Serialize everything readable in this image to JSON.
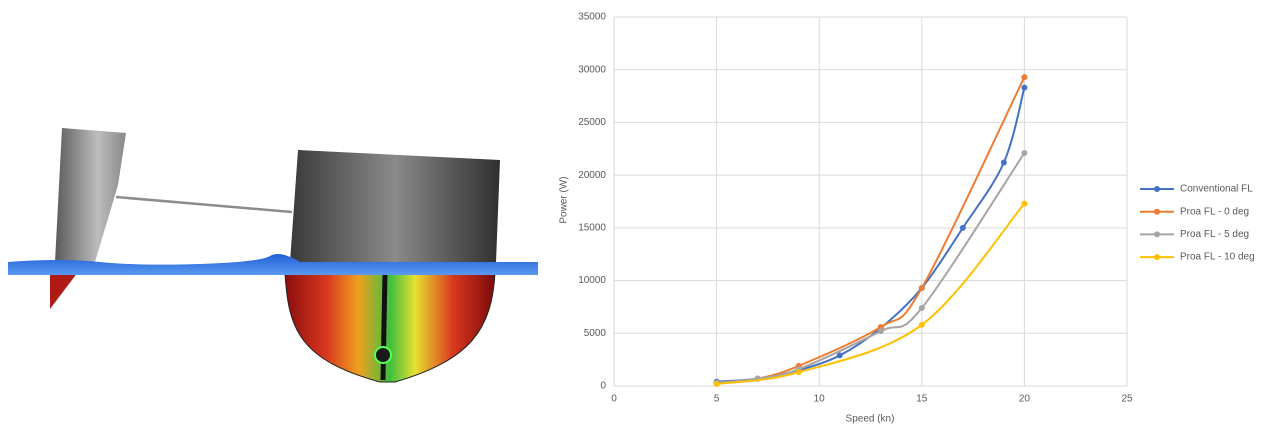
{
  "chart_data": {
    "type": "line",
    "x_label": "Speed (kn)",
    "y_label": "Power (W)",
    "xlim": [
      0,
      25
    ],
    "xticks": [
      0,
      5,
      10,
      15,
      20,
      25
    ],
    "ylim": [
      0,
      35000
    ],
    "yticks": [
      0,
      5000,
      10000,
      15000,
      20000,
      25000,
      30000,
      35000
    ],
    "grid": true,
    "smooth": true,
    "legend": "right",
    "series": [
      {
        "name": "Conventional FL",
        "color": "#4472c4",
        "x": [
          5,
          7,
          9,
          11,
          13,
          15,
          17,
          19,
          20
        ],
        "values": [
          400,
          700,
          1500,
          2900,
          5500,
          9300,
          15000,
          21200,
          28300
        ]
      },
      {
        "name": "Proa FL - 0 deg",
        "color": "#ed7d31",
        "x": [
          5,
          7,
          9,
          13,
          15,
          20
        ],
        "values": [
          300,
          700,
          1900,
          5600,
          9300,
          29300
        ]
      },
      {
        "name": "Proa FL - 5 deg",
        "color": "#a5a5a5",
        "x": [
          5,
          7,
          9,
          13,
          15,
          20
        ],
        "values": [
          300,
          700,
          1600,
          5200,
          7400,
          22100
        ]
      },
      {
        "name": "Proa FL - 10 deg",
        "color": "#ffc000",
        "x": [
          5,
          9,
          15,
          20
        ],
        "values": [
          200,
          1300,
          5800,
          17300
        ]
      }
    ]
  }
}
